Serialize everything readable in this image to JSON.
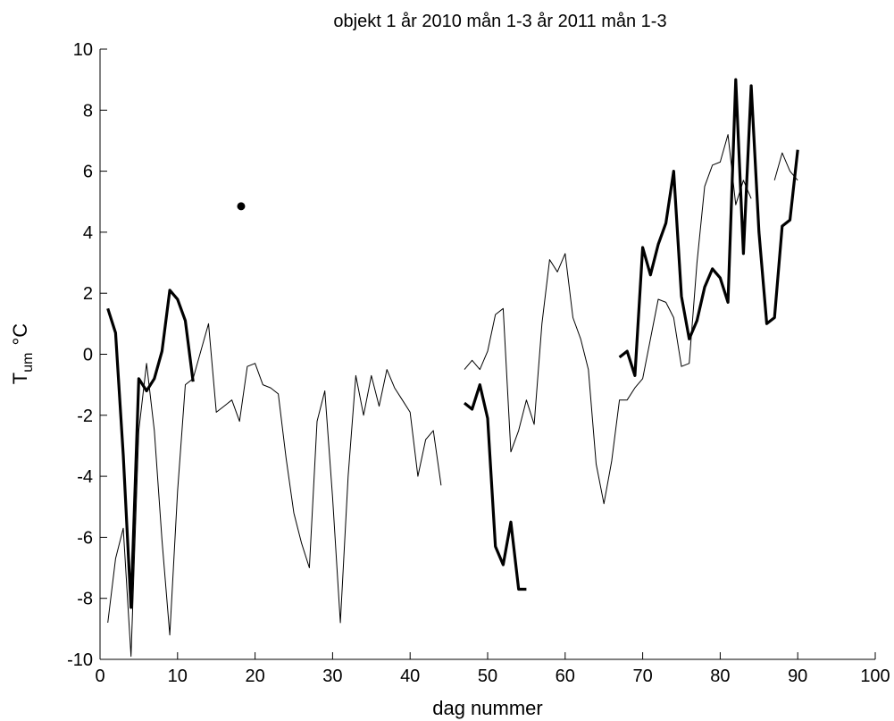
{
  "chart_data": {
    "type": "line",
    "title": "objekt 1   år 2010 mån 1-3   år 2011 mån 1-3",
    "xlabel": "dag nummer",
    "ylabel_main": "T",
    "ylabel_sub": "um",
    "ylabel_unit": "°C",
    "xlim": [
      0,
      100
    ],
    "ylim": [
      -10,
      10
    ],
    "xticks": [
      0,
      10,
      20,
      30,
      40,
      50,
      60,
      70,
      80,
      90,
      100
    ],
    "yticks": [
      -10,
      -8,
      -6,
      -4,
      -2,
      0,
      2,
      4,
      6,
      8,
      10
    ],
    "grid": false,
    "series": [
      {
        "style": "thin",
        "color": "#000000",
        "segments": [
          [
            [
              1,
              -8.8
            ],
            [
              2,
              -6.7
            ],
            [
              3,
              -5.7
            ],
            [
              4,
              -9.9
            ],
            [
              5,
              -2.5
            ],
            [
              6,
              -0.3
            ],
            [
              7,
              -2.5
            ],
            [
              8,
              -6.1
            ],
            [
              9,
              -9.2
            ],
            [
              10,
              -4.5
            ],
            [
              11,
              -1.0
            ],
            [
              12,
              -0.8
            ],
            [
              13,
              0.1
            ],
            [
              14,
              1.0
            ],
            [
              15,
              -1.9
            ],
            [
              16,
              -1.7
            ],
            [
              17,
              -1.5
            ],
            [
              18,
              -2.2
            ],
            [
              19,
              -0.4
            ],
            [
              20,
              -0.3
            ],
            [
              21,
              -1.0
            ],
            [
              22,
              -1.1
            ],
            [
              23,
              -1.3
            ],
            [
              24,
              -3.4
            ],
            [
              25,
              -5.2
            ],
            [
              26,
              -6.2
            ],
            [
              27,
              -7.0
            ],
            [
              28,
              -2.2
            ],
            [
              29,
              -1.2
            ],
            [
              30,
              -4.7
            ],
            [
              31,
              -8.8
            ],
            [
              32,
              -4.0
            ],
            [
              33,
              -0.7
            ],
            [
              34,
              -2.0
            ],
            [
              35,
              -0.7
            ],
            [
              36,
              -1.7
            ],
            [
              37,
              -0.5
            ],
            [
              38,
              -1.1
            ],
            [
              39,
              -1.5
            ],
            [
              40,
              -1.9
            ],
            [
              41,
              -4.0
            ],
            [
              42,
              -2.8
            ],
            [
              43,
              -2.5
            ],
            [
              44,
              -4.3
            ]
          ],
          [
            [
              47,
              -0.5
            ],
            [
              48,
              -0.2
            ],
            [
              49,
              -0.5
            ],
            [
              50,
              0.1
            ],
            [
              51,
              1.3
            ],
            [
              52,
              1.5
            ],
            [
              53,
              -3.2
            ],
            [
              54,
              -2.5
            ],
            [
              55,
              -1.5
            ],
            [
              56,
              -2.3
            ],
            [
              57,
              1.0
            ],
            [
              58,
              3.1
            ],
            [
              59,
              2.7
            ],
            [
              60,
              3.3
            ],
            [
              61,
              1.2
            ],
            [
              62,
              0.5
            ],
            [
              63,
              -0.5
            ],
            [
              64,
              -3.6
            ],
            [
              65,
              -4.9
            ],
            [
              66,
              -3.5
            ],
            [
              67,
              -1.5
            ],
            [
              68,
              -1.5
            ],
            [
              69,
              -1.1
            ],
            [
              70,
              -0.8
            ],
            [
              71,
              0.5
            ],
            [
              72,
              1.8
            ],
            [
              73,
              1.7
            ],
            [
              74,
              1.2
            ],
            [
              75,
              -0.4
            ],
            [
              76,
              -0.3
            ],
            [
              77,
              3.0
            ],
            [
              78,
              5.5
            ],
            [
              79,
              6.2
            ],
            [
              80,
              6.3
            ],
            [
              81,
              7.2
            ],
            [
              82,
              4.9
            ],
            [
              83,
              5.7
            ],
            [
              84,
              5.1
            ]
          ],
          [
            [
              87,
              5.7
            ],
            [
              88,
              6.6
            ],
            [
              89,
              6.0
            ],
            [
              90,
              5.7
            ]
          ]
        ]
      },
      {
        "style": "thick",
        "color": "#000000",
        "segments": [
          [
            [
              1,
              1.5
            ],
            [
              2,
              0.7
            ],
            [
              3,
              -3.3
            ],
            [
              4,
              -8.3
            ],
            [
              5,
              -0.8
            ],
            [
              6,
              -1.2
            ],
            [
              7,
              -0.8
            ],
            [
              8,
              0.1
            ],
            [
              9,
              2.1
            ],
            [
              10,
              1.8
            ],
            [
              11,
              1.1
            ],
            [
              12,
              -0.9
            ]
          ],
          [
            [
              47,
              -1.6
            ],
            [
              48,
              -1.8
            ],
            [
              49,
              -1.0
            ],
            [
              50,
              -2.1
            ],
            [
              51,
              -6.3
            ],
            [
              52,
              -6.9
            ],
            [
              53,
              -5.5
            ],
            [
              54,
              -7.7
            ],
            [
              55,
              -7.7
            ]
          ],
          [
            [
              67,
              -0.1
            ],
            [
              68,
              0.1
            ],
            [
              69,
              -0.7
            ],
            [
              70,
              3.5
            ],
            [
              71,
              2.6
            ],
            [
              72,
              3.6
            ],
            [
              73,
              4.3
            ],
            [
              74,
              6.0
            ],
            [
              75,
              1.9
            ],
            [
              76,
              0.5
            ],
            [
              77,
              1.1
            ],
            [
              78,
              2.2
            ],
            [
              79,
              2.8
            ],
            [
              80,
              2.5
            ],
            [
              81,
              1.7
            ],
            [
              82,
              9.0
            ],
            [
              83,
              3.3
            ],
            [
              84,
              8.8
            ],
            [
              85,
              4.0
            ],
            [
              86,
              1.0
            ],
            [
              87,
              1.2
            ],
            [
              88,
              4.2
            ],
            [
              89,
              4.4
            ],
            [
              90,
              6.7
            ]
          ]
        ]
      }
    ],
    "points": [
      {
        "x": 18.2,
        "y": 4.85
      }
    ]
  }
}
